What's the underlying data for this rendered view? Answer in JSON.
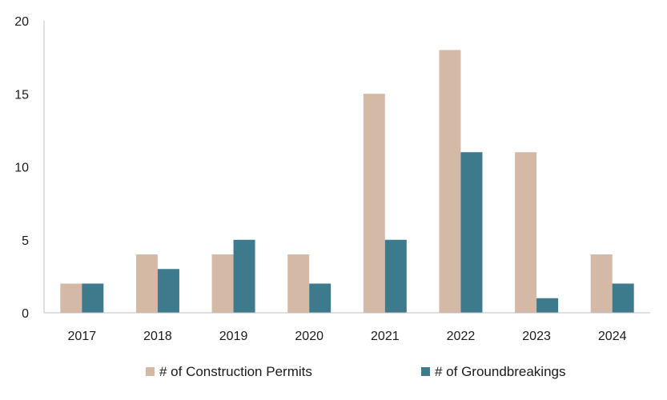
{
  "chart_data": {
    "type": "bar",
    "title": "",
    "xlabel": "",
    "ylabel": "",
    "categories": [
      "2017",
      "2018",
      "2019",
      "2020",
      "2021",
      "2022",
      "2023",
      "2024"
    ],
    "ylim": [
      0,
      20
    ],
    "yticks": [
      0,
      5,
      10,
      15,
      20
    ],
    "grid": false,
    "legend_position": "bottom",
    "series": [
      {
        "name": "# of Construction Permits",
        "color": "#d4b9a6",
        "values": [
          2,
          4,
          4,
          4,
          15,
          18,
          11,
          4
        ]
      },
      {
        "name": "# of Groundbreakings",
        "color": "#3d7a8c",
        "values": [
          2,
          3,
          5,
          2,
          5,
          11,
          1,
          2
        ]
      }
    ]
  }
}
